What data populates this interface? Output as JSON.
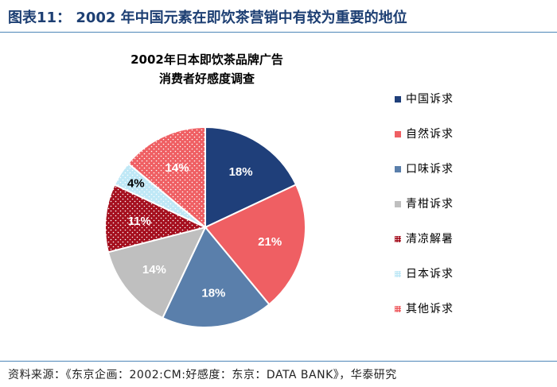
{
  "figure": {
    "title": "图表11： 2002 年中国元素在即饮茶营销中有较为重要的地位",
    "source": "资料来源：《东京企画：2002:CM:好感度：东京：DATA BANK》，华泰研究"
  },
  "chart_data": {
    "type": "pie",
    "title_lines": [
      "2002年日本即饮茶品牌广告",
      "消费者好感度调查"
    ],
    "start_angle_deg": 0,
    "direction": "clockwise",
    "legend_position": "right",
    "slices": [
      {
        "label": "中国诉求",
        "value": 18,
        "value_label": "18%",
        "color": "#1f3f7a",
        "pattern": "solid"
      },
      {
        "label": "自然诉求",
        "value": 21,
        "value_label": "21%",
        "color": "#ef5f63",
        "pattern": "solid"
      },
      {
        "label": "口味诉求",
        "value": 18,
        "value_label": "18%",
        "color": "#5a7fab",
        "pattern": "solid"
      },
      {
        "label": "青柑诉求",
        "value": 14,
        "value_label": "14%",
        "color": "#bfbfbf",
        "pattern": "solid"
      },
      {
        "label": "清凉解暑",
        "value": 11,
        "value_label": "11%",
        "color": "#a50f1e",
        "pattern": "dots"
      },
      {
        "label": "日本诉求",
        "value": 4,
        "value_label": "4%",
        "color": "#bfe8f6",
        "pattern": "dots"
      },
      {
        "label": "其他诉求",
        "value": 14,
        "value_label": "14%",
        "color": "#ef5f63",
        "pattern": "dots"
      }
    ]
  }
}
